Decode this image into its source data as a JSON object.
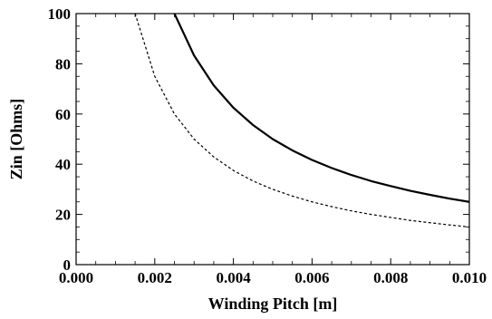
{
  "chart_data": {
    "type": "line",
    "title": "",
    "xlabel": "Winding Pitch [m]",
    "ylabel": "Zin [Ohms]",
    "xlim": [
      0.0,
      0.01
    ],
    "ylim": [
      0,
      100
    ],
    "x_ticks": [
      "0.000",
      "0.002",
      "0.004",
      "0.006",
      "0.008",
      "0.010"
    ],
    "y_ticks": [
      "0",
      "20",
      "40",
      "60",
      "80",
      "100"
    ],
    "grid": false,
    "legend": "none",
    "series": [
      {
        "style": "solid",
        "color": "#000000",
        "x": [
          0.0025,
          0.003,
          0.0035,
          0.004,
          0.0045,
          0.005,
          0.0055,
          0.006,
          0.0065,
          0.007,
          0.0075,
          0.008,
          0.0085,
          0.009,
          0.0095,
          0.01
        ],
        "y": [
          100.0,
          83.3,
          71.4,
          62.5,
          55.6,
          50.0,
          45.5,
          41.7,
          38.5,
          35.7,
          33.3,
          31.3,
          29.4,
          27.8,
          26.3,
          25.0
        ]
      },
      {
        "style": "dashed",
        "color": "#000000",
        "x": [
          0.0015,
          0.002,
          0.0025,
          0.003,
          0.0035,
          0.004,
          0.0045,
          0.005,
          0.0055,
          0.006,
          0.0065,
          0.007,
          0.0075,
          0.008,
          0.0085,
          0.009,
          0.0095,
          0.01
        ],
        "y": [
          100.0,
          75.0,
          60.0,
          50.0,
          42.9,
          37.5,
          33.3,
          30.0,
          27.3,
          25.0,
          23.1,
          21.4,
          20.0,
          18.8,
          17.6,
          16.7,
          15.8,
          15.0
        ]
      }
    ]
  }
}
